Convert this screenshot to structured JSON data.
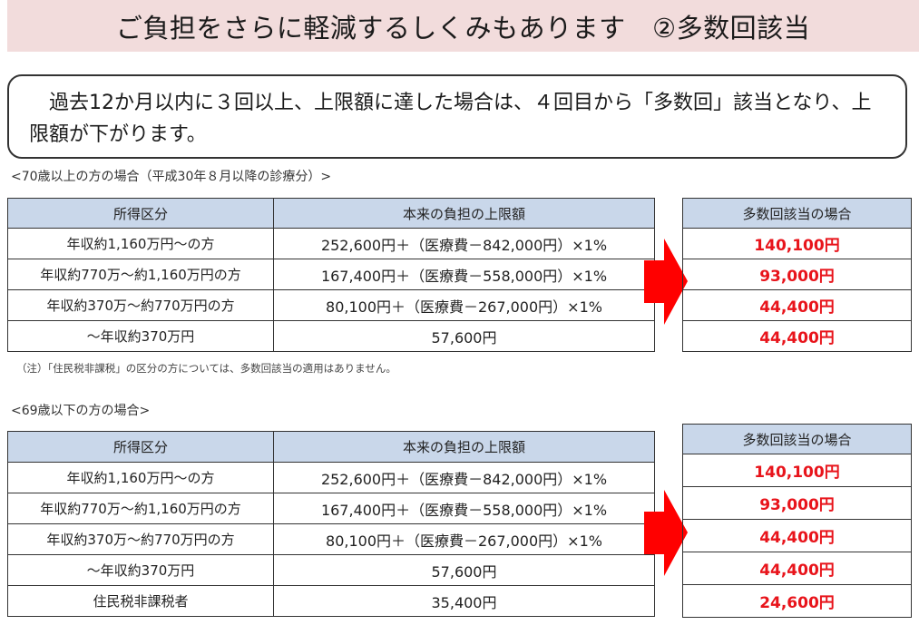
{
  "banner": {
    "title": "ご負担をさらに軽減するしくみもあります　②多数回該当"
  },
  "notice": {
    "text": "過去12か月以内に３回以上、上限額に達した場合は、４回目から「多数回」該当となり、上限額が下がります。"
  },
  "section70": {
    "caption": "<70歳以上の方の場合（平成30年８月以降の診療分）>",
    "headers": {
      "income": "所得区分",
      "limit": "本来の負担の上限額",
      "multi": "多数回該当の場合"
    },
    "rows": [
      {
        "income": "年収約1,160万円～の方",
        "limit": "252,600円＋（医療費－842,000円）×1%",
        "multi": "140,100円"
      },
      {
        "income": "年収約770万～約1,160万円の方",
        "limit": "167,400円＋（医療費－558,000円）×1%",
        "multi": "93,000円"
      },
      {
        "income": "年収約370万～約770万円の方",
        "limit": "80,100円＋（医療費－267,000円）×1%",
        "multi": "44,400円"
      },
      {
        "income": "～年収約370万円",
        "limit": "57,600円",
        "multi": "44,400円"
      }
    ],
    "note": "（注）「住民税非課税」の区分の方については、多数回該当の適用はありません。"
  },
  "section69": {
    "caption": "<69歳以下の方の場合>",
    "headers": {
      "income": "所得区分",
      "limit": "本来の負担の上限額",
      "multi": "多数回該当の場合"
    },
    "rows": [
      {
        "income": "年収約1,160万円～の方",
        "limit": "252,600円＋（医療費－842,000円）×1%",
        "multi": "140,100円"
      },
      {
        "income": "年収約770万～約1,160万円の方",
        "limit": "167,400円＋（医療費－558,000円）×1%",
        "multi": "93,000円"
      },
      {
        "income": "年収約370万～約770万円の方",
        "limit": "80,100円＋（医療費－267,000円）×1%",
        "multi": "44,400円"
      },
      {
        "income": "～年収約370万円",
        "limit": "57,600円",
        "multi": "44,400円"
      },
      {
        "income": "住民税非課税者",
        "limit": "35,400円",
        "multi": "24,600円"
      }
    ]
  },
  "colors": {
    "banner_bg": "#f2dcdc",
    "header_bg": "#c9d7ea",
    "highlight": "#e8141b",
    "arrow": "#ff0000"
  },
  "icons": {
    "arrow": "right-arrow-icon"
  }
}
